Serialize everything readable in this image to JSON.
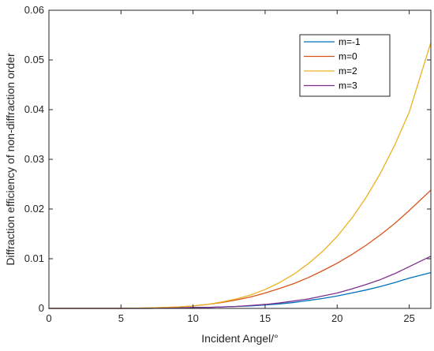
{
  "chart_data": {
    "type": "line",
    "title": "",
    "xlabel": "Incident Angel/°",
    "ylabel": "Diffraction efficiency of non-diffraction order",
    "xlim": [
      0,
      26.5
    ],
    "ylim": [
      0,
      0.06
    ],
    "x_ticks": [
      "0",
      "5",
      "10",
      "15",
      "20",
      "25"
    ],
    "y_ticks": [
      "0",
      "0.01",
      "0.02",
      "0.03",
      "0.04",
      "0.05",
      "0.06"
    ],
    "grid": false,
    "legend_position": "top-right",
    "x": [
      0,
      5,
      7,
      9,
      10,
      11,
      12,
      13,
      14,
      15,
      16,
      17,
      18,
      19,
      20,
      21,
      22,
      23,
      24,
      25,
      26.5
    ],
    "series": [
      {
        "name": "m=-1",
        "color": "#0072BD",
        "values": [
          0,
          0,
          0,
          0.0001,
          0.0002,
          0.0002,
          0.0003,
          0.0004,
          0.0005,
          0.0007,
          0.0009,
          0.0012,
          0.0016,
          0.002,
          0.0025,
          0.0031,
          0.0037,
          0.0044,
          0.0052,
          0.0061,
          0.0072
        ]
      },
      {
        "name": "m=0",
        "color": "#D95319",
        "values": [
          0,
          0,
          0.0001,
          0.0003,
          0.0005,
          0.0008,
          0.0012,
          0.0017,
          0.0023,
          0.0031,
          0.004,
          0.005,
          0.0062,
          0.0076,
          0.0091,
          0.0108,
          0.0127,
          0.0148,
          0.0171,
          0.0197,
          0.0238
        ]
      },
      {
        "name": "m=2",
        "color": "#EDB120",
        "values": [
          0,
          0,
          0.0001,
          0.0003,
          0.0005,
          0.0008,
          0.0013,
          0.0019,
          0.0027,
          0.0038,
          0.0052,
          0.0069,
          0.009,
          0.0115,
          0.0145,
          0.0181,
          0.0223,
          0.0272,
          0.0329,
          0.0395,
          0.0535
        ]
      },
      {
        "name": "m=3",
        "color": "#7E2F8E",
        "values": [
          0,
          0,
          0,
          0.0001,
          0.0002,
          0.0002,
          0.0003,
          0.0004,
          0.0006,
          0.0008,
          0.0011,
          0.0015,
          0.0019,
          0.0025,
          0.0031,
          0.0039,
          0.0048,
          0.0058,
          0.007,
          0.0084,
          0.0105
        ]
      }
    ]
  }
}
